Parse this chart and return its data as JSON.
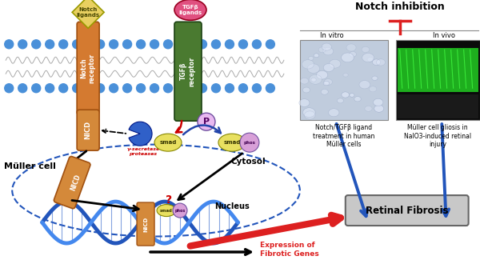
{
  "bg_color": "#ffffff",
  "membrane_ball_color": "#4a90d9",
  "notch_receptor_color": "#d47a30",
  "tgfb_receptor_color": "#4a7a30",
  "nicd_color": "#d4893a",
  "smad_color": "#e8e060",
  "phos_color": "#d8a0d8",
  "notch_ligand_color": "#e8d060",
  "tgfb_ligand_color": "#e05080",
  "pacman_color": "#3060c8",
  "dna_color1": "#2255bb",
  "dna_color2": "#4488ee",
  "arrow_red_color": "#dd2020",
  "arrow_blue_color": "#2255bb",
  "cytosol_dashed_color": "#2255bb",
  "retinal_fibrosis_box_color": "#c8c8c8",
  "invitro_bg": "#c0ccdd",
  "invivo_bg_dark": "#101010",
  "invivo_green": "#22cc22",
  "invivo_gray": "#888888",
  "notch_inhibition_label": "Notch inhibition",
  "retinal_fibrosis_label": "Retinal Fibrosis",
  "muller_cell_label": "Müller cell",
  "cytosol_text": "Cytosol",
  "nucleus_text": "Nucleus",
  "nicd_label": "NICD",
  "notch_receptor_label": "Notch\nreceptor",
  "tgfb_receptor_label": "TGFβ\nreceptor",
  "notch_ligands_label": "Notch\nligands",
  "tgfb_ligands_label": "TGFβ\nligands",
  "gamma_secretase_label": "γ-secretase\nproteases",
  "smad_label": "smad",
  "phos_label": "phos",
  "P_label": "P",
  "expression_label": "Expression of\nFibrotic Genes",
  "invitro_label": "In vitro",
  "invivo_label": "In vivo",
  "notch_tgfb_caption": "Notch/TGFβ ligand\ntreatment in human\nMüller cells",
  "muller_gliosis_caption": "Müller cell gliosis in\nNaIO3-induced retinal\ninjury"
}
